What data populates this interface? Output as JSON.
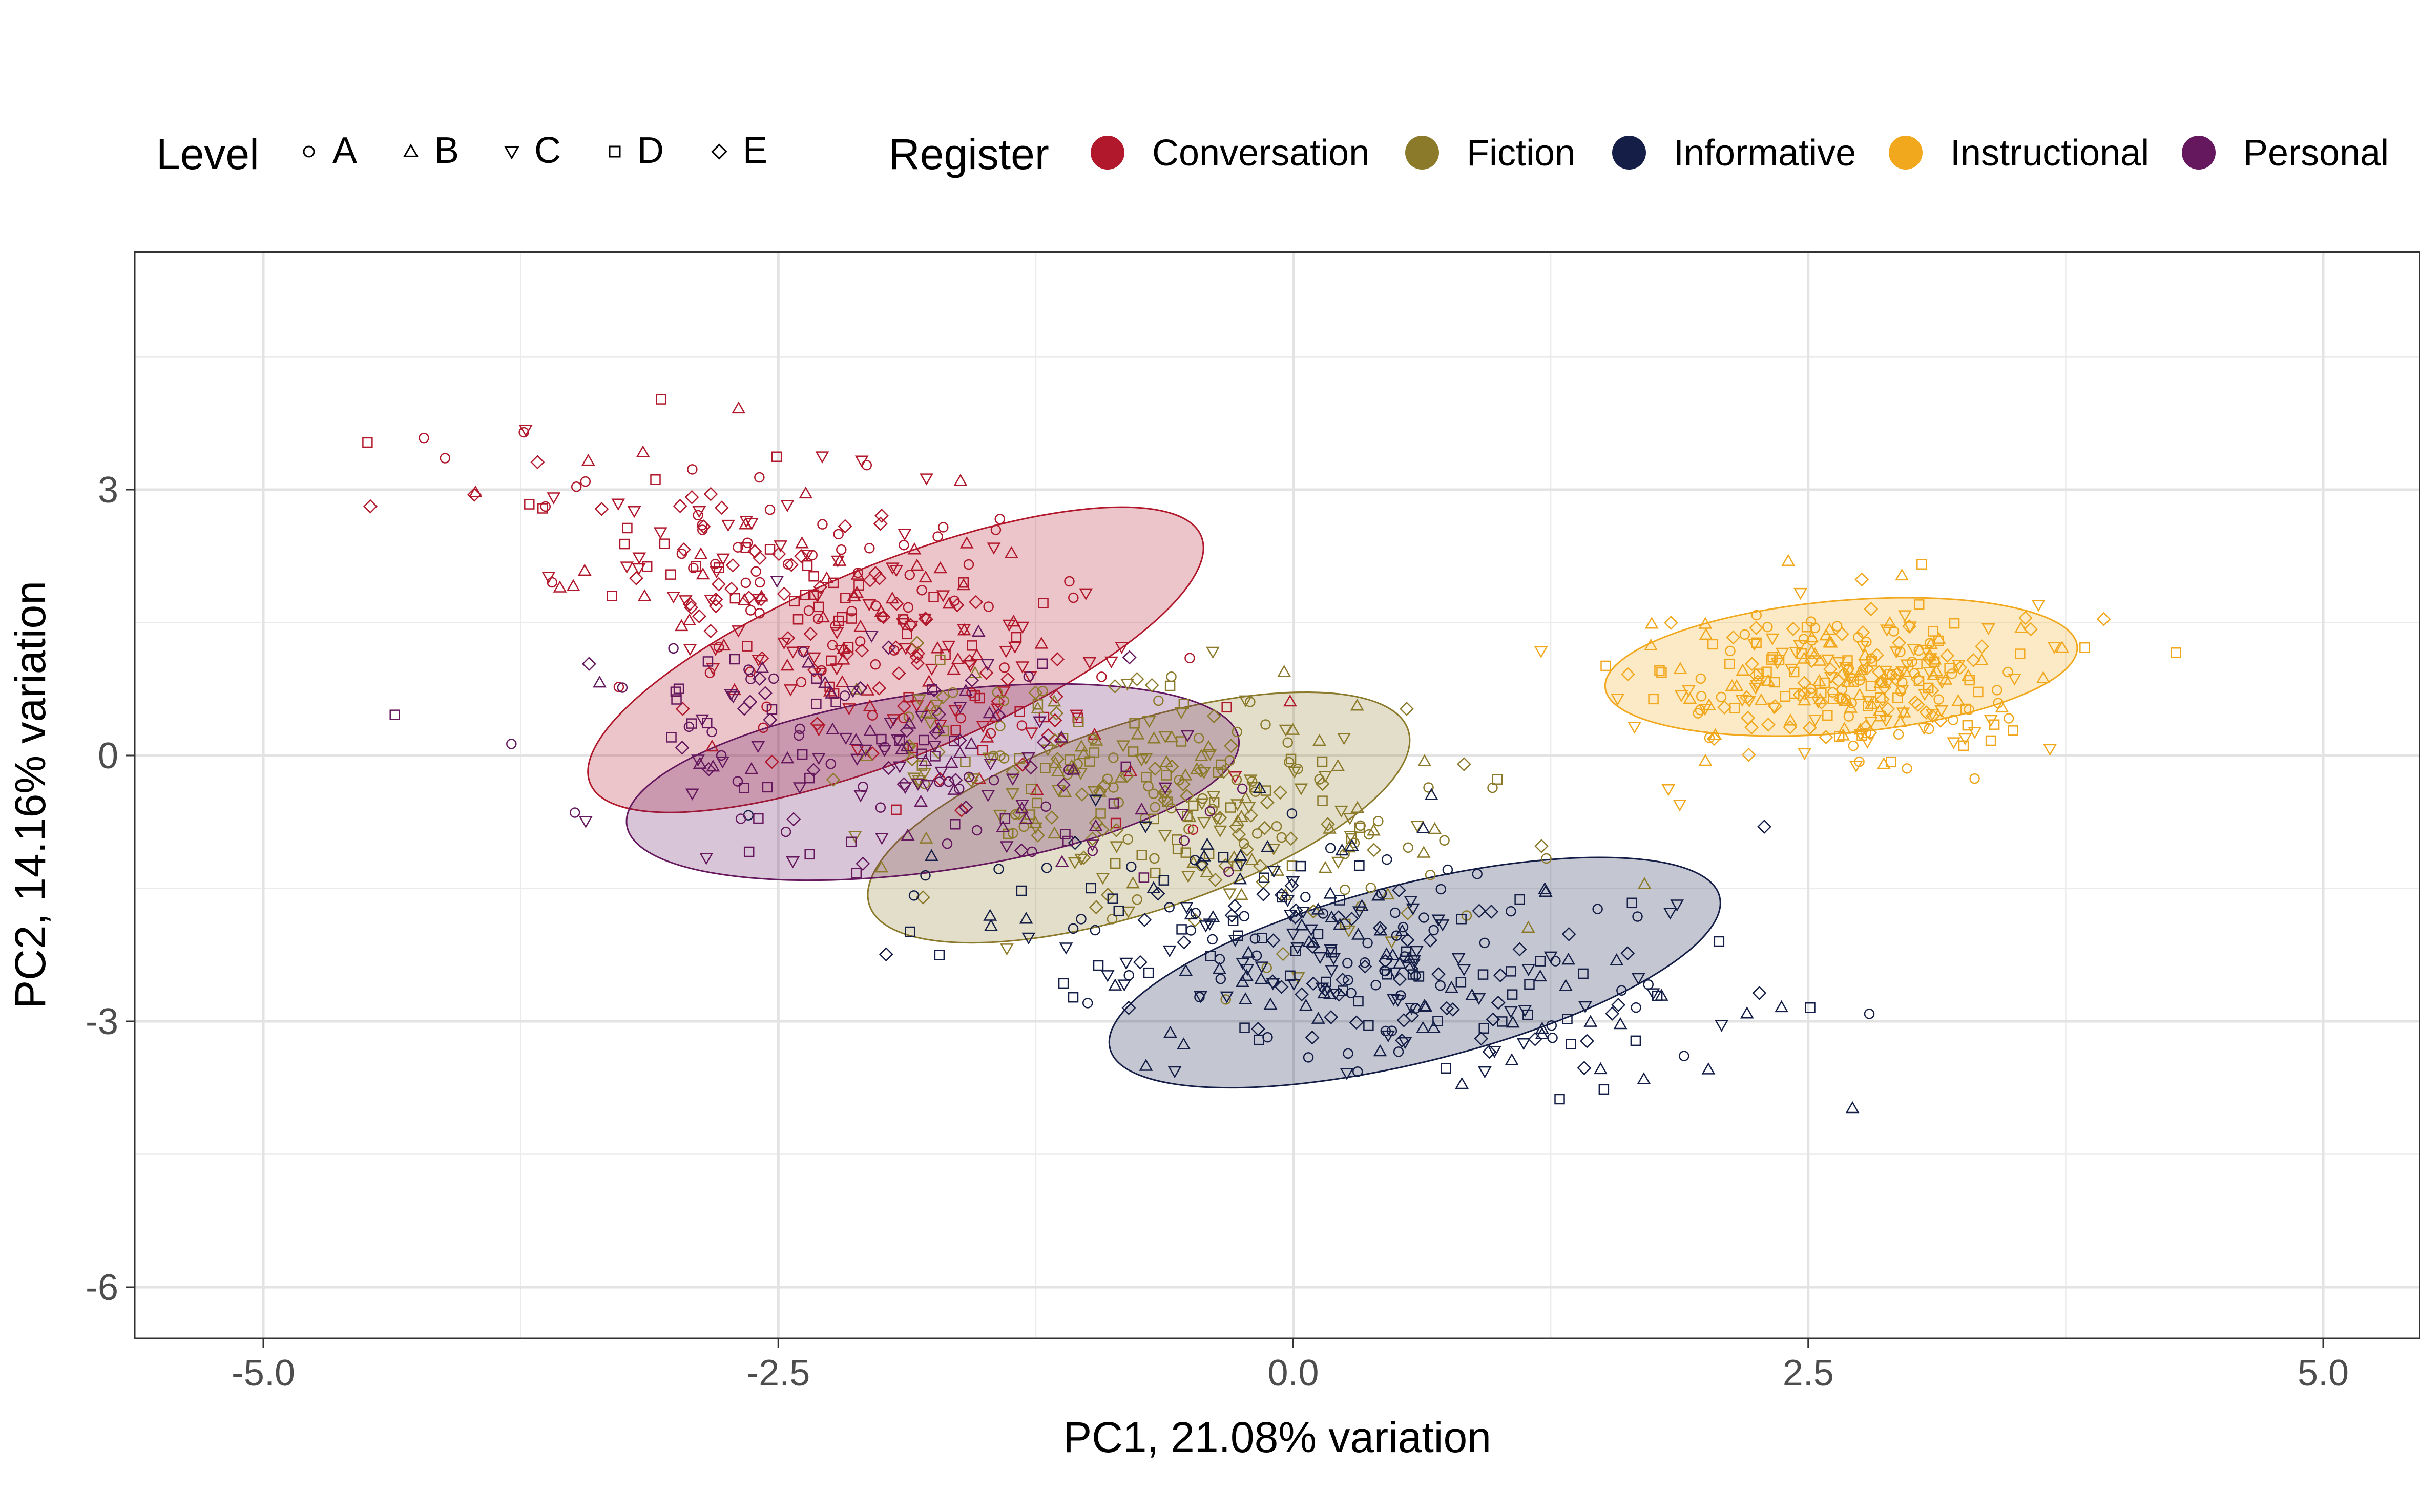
{
  "chart_data": {
    "type": "scatter",
    "title": "",
    "xlabel": "PC1, 21.08% variation",
    "ylabel": "PC2, 14.16% variation",
    "xlim": [
      -5.5,
      5.95
    ],
    "ylim": [
      -6.5,
      5.6
    ],
    "x_ticks": [
      -5.0,
      -2.5,
      0.0,
      2.5,
      5.0
    ],
    "x_tick_labels": [
      "-5.0",
      "-2.5",
      "0.0",
      "2.5",
      "5.0"
    ],
    "y_ticks": [
      -6,
      -3,
      0,
      3
    ],
    "y_tick_labels": [
      "-6",
      "-3",
      "0",
      "3"
    ],
    "grid": true,
    "legend_position": "top",
    "legends": {
      "shape": {
        "title": "Level",
        "entries": [
          {
            "label": "A",
            "shape": "circle"
          },
          {
            "label": "B",
            "shape": "triangle-up"
          },
          {
            "label": "C",
            "shape": "triangle-down"
          },
          {
            "label": "D",
            "shape": "square"
          },
          {
            "label": "E",
            "shape": "diamond"
          }
        ]
      },
      "color": {
        "title": "Register",
        "entries": [
          {
            "label": "Conversation",
            "color": "#B2182B"
          },
          {
            "label": "Fiction",
            "color": "#8C7A2B"
          },
          {
            "label": "Informative",
            "color": "#141E46"
          },
          {
            "label": "Instructional",
            "color": "#F2A81D"
          },
          {
            "label": "Personal",
            "color": "#65185E"
          }
        ]
      }
    },
    "series": [
      {
        "name": "Conversation",
        "color": "#B2182B",
        "center": [
          -2.3,
          1.7
        ],
        "sd": [
          0.72,
          0.85
        ],
        "corr": -0.55,
        "n": 340,
        "ellipse": {
          "cx": -1.93,
          "cy": 1.08,
          "rx": 3.2,
          "ry": 1.9,
          "angle_deg": -22
        }
      },
      {
        "name": "Fiction",
        "color": "#8C7A2B",
        "center": [
          -0.6,
          -0.4
        ],
        "sd": [
          0.78,
          0.75
        ],
        "corr": -0.4,
        "n": 300,
        "ellipse": {
          "cx": -0.75,
          "cy": -0.7,
          "rx": 2.75,
          "ry": 1.85,
          "angle_deg": -18
        }
      },
      {
        "name": "Informative",
        "color": "#141E46",
        "center": [
          0.3,
          -2.3
        ],
        "sd": [
          0.85,
          0.7
        ],
        "corr": -0.45,
        "n": 330,
        "ellipse": {
          "cx": 0.59,
          "cy": -2.45,
          "rx": 3.05,
          "ry": 1.75,
          "angle_deg": -14
        }
      },
      {
        "name": "Instructional",
        "color": "#F2A81D",
        "center": [
          2.75,
          0.85
        ],
        "sd": [
          0.45,
          0.45
        ],
        "corr": 0.0,
        "n": 300,
        "ellipse": {
          "cx": 2.66,
          "cy": 1.0,
          "rx": 2.3,
          "ry": 1.3,
          "angle_deg": -5
        }
      },
      {
        "name": "Personal",
        "color": "#65185E",
        "center": [
          -2.0,
          0.0
        ],
        "sd": [
          0.75,
          0.7
        ],
        "corr": -0.3,
        "n": 180,
        "ellipse": {
          "cx": -1.75,
          "cy": -0.3,
          "rx": 3.0,
          "ry": 1.75,
          "angle_deg": -8
        }
      }
    ]
  }
}
